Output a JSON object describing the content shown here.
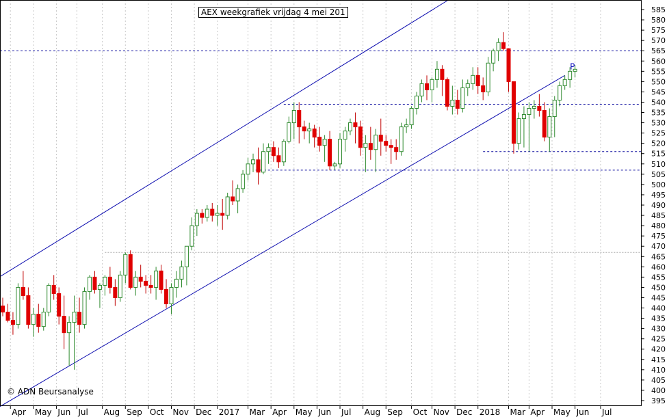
{
  "title": "AEX weekgrafiek vrijdag 4 mei 201",
  "copyright": "© ADN Beursanalyse",
  "chart_data": {
    "type": "candlestick",
    "ylim": [
      395,
      585
    ],
    "yticks": [
      395,
      400,
      405,
      410,
      415,
      420,
      425,
      430,
      435,
      440,
      445,
      450,
      455,
      460,
      465,
      470,
      475,
      480,
      485,
      490,
      495,
      500,
      505,
      510,
      515,
      520,
      525,
      530,
      535,
      540,
      545,
      550,
      555,
      560,
      565,
      570,
      575,
      580,
      585
    ],
    "months": [
      "Apr",
      "May",
      "Jun",
      "Jul",
      "Aug",
      "Sep",
      "Oct",
      "Nov",
      "Dec",
      "2017",
      "Mar",
      "Apr",
      "May",
      "Jun",
      "Jul",
      "Aug",
      "Sep",
      "Oct",
      "Nov",
      "Dec",
      "2018",
      "Mar",
      "Apr",
      "May",
      "Jun",
      "Jul"
    ],
    "month_weeks": [
      1.5,
      6,
      10.5,
      14.5,
      19.5,
      24,
      28.5,
      33,
      37.5,
      42,
      48,
      52.5,
      57,
      61.5,
      66,
      70.5,
      75,
      80,
      84,
      88.5,
      93,
      99,
      103,
      107.5,
      112,
      117
    ],
    "horizontal_lines": [
      {
        "value": 565,
        "from_week": -2,
        "style": "dotted"
      },
      {
        "value": 539,
        "from_week": 55,
        "style": "dotted"
      },
      {
        "value": 516,
        "from_week": 94,
        "style": "dotted"
      },
      {
        "value": 507,
        "from_week": 49.5,
        "style": "dotted"
      },
      {
        "value": 467,
        "from_week": 20,
        "style": "dotted-grey"
      }
    ],
    "channel_lines": [
      {
        "start": [
          -2,
          453
        ],
        "end": [
          92,
          597
        ]
      },
      {
        "start": [
          -2,
          390
        ],
        "end": [
          110,
          553
        ]
      }
    ],
    "channel_label": "P",
    "channel_label_at": [
      111,
      556
    ],
    "candles": [
      [
        441,
        445,
        436,
        438
      ],
      [
        438,
        442,
        433,
        434
      ],
      [
        434,
        438,
        427,
        432
      ],
      [
        432,
        452,
        430,
        450
      ],
      [
        450,
        458,
        444,
        446
      ],
      [
        446,
        450,
        430,
        432
      ],
      [
        432,
        440,
        426,
        437
      ],
      [
        437,
        442,
        428,
        431
      ],
      [
        431,
        440,
        429,
        438
      ],
      [
        438,
        452,
        436,
        451
      ],
      [
        451,
        456,
        444,
        447
      ],
      [
        447,
        450,
        432,
        436
      ],
      [
        436,
        446,
        420,
        428
      ],
      [
        428,
        436,
        412,
        433
      ],
      [
        433,
        446,
        410,
        438
      ],
      [
        438,
        445,
        428,
        432
      ],
      [
        432,
        450,
        430,
        448
      ],
      [
        448,
        456,
        444,
        455
      ],
      [
        455,
        458,
        447,
        449
      ],
      [
        449,
        452,
        440,
        451
      ],
      [
        451,
        456,
        446,
        455
      ],
      [
        455,
        460,
        447,
        450
      ],
      [
        450,
        454,
        441,
        445
      ],
      [
        445,
        458,
        443,
        456
      ],
      [
        456,
        467,
        452,
        466
      ],
      [
        466,
        468,
        449,
        450
      ],
      [
        450,
        458,
        446,
        455
      ],
      [
        455,
        461,
        450,
        453
      ],
      [
        453,
        456,
        447,
        451
      ],
      [
        451,
        456,
        447,
        450
      ],
      [
        450,
        460,
        444,
        458
      ],
      [
        458,
        461,
        447,
        449
      ],
      [
        449,
        454,
        440,
        442
      ],
      [
        442,
        452,
        437,
        450
      ],
      [
        450,
        458,
        445,
        454
      ],
      [
        454,
        463,
        450,
        460
      ],
      [
        460,
        470,
        451,
        470
      ],
      [
        470,
        484,
        468,
        480
      ],
      [
        480,
        488,
        475,
        486
      ],
      [
        486,
        488,
        481,
        484
      ],
      [
        484,
        490,
        482,
        488
      ],
      [
        488,
        491,
        482,
        485
      ],
      [
        485,
        490,
        480,
        486
      ],
      [
        486,
        493,
        478,
        485
      ],
      [
        485,
        496,
        483,
        494
      ],
      [
        494,
        502,
        490,
        492
      ],
      [
        492,
        500,
        486,
        498
      ],
      [
        498,
        507,
        496,
        505
      ],
      [
        505,
        513,
        502,
        510
      ],
      [
        510,
        515,
        506,
        512
      ],
      [
        512,
        518,
        500,
        506
      ],
      [
        506,
        520,
        505,
        516
      ],
      [
        516,
        520,
        510,
        518
      ],
      [
        518,
        521,
        511,
        514
      ],
      [
        514,
        518,
        508,
        511
      ],
      [
        511,
        522,
        509,
        521
      ],
      [
        521,
        533,
        520,
        530
      ],
      [
        530,
        540,
        522,
        536
      ],
      [
        536,
        540,
        520,
        528
      ],
      [
        528,
        531,
        522,
        526
      ],
      [
        526,
        530,
        520,
        527
      ],
      [
        527,
        529,
        518,
        523
      ],
      [
        523,
        528,
        516,
        519
      ],
      [
        519,
        524,
        511,
        522
      ],
      [
        522,
        526,
        507,
        509
      ],
      [
        509,
        511,
        507,
        510
      ],
      [
        510,
        525,
        508,
        522
      ],
      [
        522,
        528,
        516,
        526
      ],
      [
        526,
        532,
        524,
        530
      ],
      [
        530,
        535,
        520,
        528
      ],
      [
        528,
        531,
        514,
        518
      ],
      [
        518,
        524,
        506,
        520
      ],
      [
        520,
        528,
        512,
        517
      ],
      [
        517,
        527,
        506,
        524
      ],
      [
        524,
        532,
        514,
        521
      ],
      [
        521,
        524,
        516,
        519
      ],
      [
        519,
        522,
        510,
        518
      ],
      [
        518,
        522,
        512,
        516
      ],
      [
        516,
        530,
        514,
        528
      ],
      [
        528,
        532,
        525,
        529
      ],
      [
        529,
        538,
        527,
        537
      ],
      [
        537,
        545,
        534,
        543
      ],
      [
        543,
        551,
        540,
        549
      ],
      [
        549,
        553,
        541,
        546
      ],
      [
        546,
        552,
        540,
        551
      ],
      [
        551,
        560,
        547,
        556
      ],
      [
        556,
        558,
        543,
        551
      ],
      [
        551,
        552,
        536,
        538
      ],
      [
        538,
        548,
        534,
        541
      ],
      [
        541,
        546,
        534,
        537
      ],
      [
        537,
        551,
        535,
        547
      ],
      [
        547,
        551,
        543,
        549
      ],
      [
        549,
        557,
        546,
        553
      ],
      [
        553,
        557,
        544,
        548
      ],
      [
        548,
        552,
        541,
        545
      ],
      [
        545,
        562,
        543,
        559
      ],
      [
        559,
        566,
        555,
        565
      ],
      [
        565,
        571,
        560,
        569
      ],
      [
        569,
        574,
        565,
        566
      ],
      [
        566,
        566,
        545,
        550
      ],
      [
        550,
        550,
        515,
        520
      ],
      [
        520,
        535,
        517,
        532
      ],
      [
        532,
        538,
        518,
        534
      ],
      [
        534,
        540,
        516,
        537
      ],
      [
        537,
        541,
        532,
        538
      ],
      [
        538,
        544,
        533,
        536
      ],
      [
        536,
        540,
        521,
        523
      ],
      [
        523,
        537,
        516,
        533
      ],
      [
        533,
        543,
        523,
        541
      ],
      [
        541,
        550,
        538,
        548
      ],
      [
        548,
        553,
        546,
        551
      ],
      [
        551,
        557,
        547,
        555
      ],
      [
        555,
        558,
        552,
        556
      ]
    ]
  }
}
